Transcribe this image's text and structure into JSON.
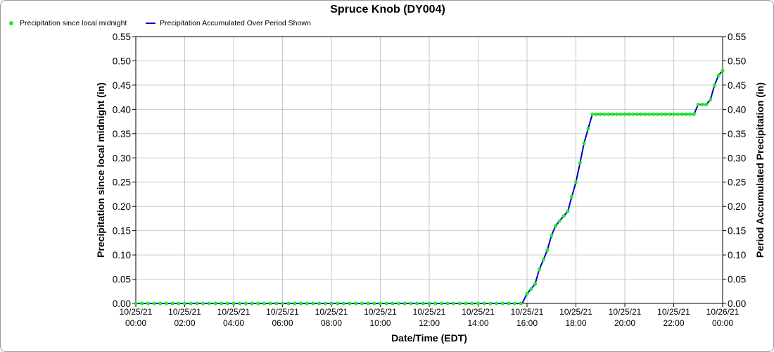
{
  "chart_data": {
    "type": "line",
    "title": "Spruce Knob (DY004)",
    "xlabel": "Date/Time (EDT)",
    "ylabel": "Precipitation since local midnight (in)",
    "ylabel_right": "Period Accumulated Precipitation (in)",
    "ylim": [
      0,
      0.55
    ],
    "xlim_hours": [
      0,
      24
    ],
    "yticks": [
      "0.00",
      "0.05",
      "0.10",
      "0.15",
      "0.20",
      "0.25",
      "0.30",
      "0.35",
      "0.40",
      "0.45",
      "0.50",
      "0.55"
    ],
    "xticks": [
      {
        "date": "10/25/21",
        "time": "00:00",
        "h": 0
      },
      {
        "date": "10/25/21",
        "time": "02:00",
        "h": 2
      },
      {
        "date": "10/25/21",
        "time": "04:00",
        "h": 4
      },
      {
        "date": "10/25/21",
        "time": "06:00",
        "h": 6
      },
      {
        "date": "10/25/21",
        "time": "08:00",
        "h": 8
      },
      {
        "date": "10/25/21",
        "time": "10:00",
        "h": 10
      },
      {
        "date": "10/25/21",
        "time": "12:00",
        "h": 12
      },
      {
        "date": "10/25/21",
        "time": "14:00",
        "h": 14
      },
      {
        "date": "10/25/21",
        "time": "16:00",
        "h": 16
      },
      {
        "date": "10/25/21",
        "time": "18:00",
        "h": 18
      },
      {
        "date": "10/25/21",
        "time": "20:00",
        "h": 20
      },
      {
        "date": "10/25/21",
        "time": "22:00",
        "h": 22
      },
      {
        "date": "10/26/21",
        "time": "00:00",
        "h": 24
      }
    ],
    "grid": true,
    "legend_position": "top-left",
    "series": [
      {
        "name": "Precipitation since local midnight",
        "style": "markers",
        "color": "#22ee22",
        "points": [
          [
            0.0,
            0
          ],
          [
            0.25,
            0
          ],
          [
            0.5,
            0
          ],
          [
            0.75,
            0
          ],
          [
            1.0,
            0
          ],
          [
            1.25,
            0
          ],
          [
            1.5,
            0
          ],
          [
            1.75,
            0
          ],
          [
            2.0,
            0
          ],
          [
            2.25,
            0
          ],
          [
            2.5,
            0
          ],
          [
            2.75,
            0
          ],
          [
            3.0,
            0
          ],
          [
            3.25,
            0
          ],
          [
            3.5,
            0
          ],
          [
            3.75,
            0
          ],
          [
            4.0,
            0
          ],
          [
            4.25,
            0
          ],
          [
            4.5,
            0
          ],
          [
            4.75,
            0
          ],
          [
            5.0,
            0
          ],
          [
            5.25,
            0
          ],
          [
            5.5,
            0
          ],
          [
            5.75,
            0
          ],
          [
            6.0,
            0
          ],
          [
            6.25,
            0
          ],
          [
            6.5,
            0
          ],
          [
            6.75,
            0
          ],
          [
            7.0,
            0
          ],
          [
            7.25,
            0
          ],
          [
            7.5,
            0
          ],
          [
            7.75,
            0
          ],
          [
            8.0,
            0
          ],
          [
            8.25,
            0
          ],
          [
            8.5,
            0
          ],
          [
            8.75,
            0
          ],
          [
            9.0,
            0
          ],
          [
            9.25,
            0
          ],
          [
            9.5,
            0
          ],
          [
            9.75,
            0
          ],
          [
            10.0,
            0
          ],
          [
            10.25,
            0
          ],
          [
            10.5,
            0
          ],
          [
            10.75,
            0
          ],
          [
            11.0,
            0
          ],
          [
            11.25,
            0
          ],
          [
            11.5,
            0
          ],
          [
            11.75,
            0
          ],
          [
            12.0,
            0
          ],
          [
            12.25,
            0
          ],
          [
            12.5,
            0
          ],
          [
            12.75,
            0
          ],
          [
            13.0,
            0
          ],
          [
            13.25,
            0
          ],
          [
            13.5,
            0
          ],
          [
            13.75,
            0
          ],
          [
            14.0,
            0
          ],
          [
            14.25,
            0
          ],
          [
            14.5,
            0
          ],
          [
            14.75,
            0
          ],
          [
            15.0,
            0
          ],
          [
            15.25,
            0
          ],
          [
            15.5,
            0
          ],
          [
            15.75,
            0
          ],
          [
            16.0,
            0.02
          ],
          [
            16.17,
            0.03
          ],
          [
            16.33,
            0.04
          ],
          [
            16.5,
            0.07
          ],
          [
            16.67,
            0.09
          ],
          [
            16.83,
            0.11
          ],
          [
            17.0,
            0.14
          ],
          [
            17.17,
            0.16
          ],
          [
            17.33,
            0.17
          ],
          [
            17.5,
            0.18
          ],
          [
            17.67,
            0.19
          ],
          [
            17.83,
            0.22
          ],
          [
            18.0,
            0.25
          ],
          [
            18.17,
            0.29
          ],
          [
            18.33,
            0.33
          ],
          [
            18.5,
            0.36
          ],
          [
            18.67,
            0.39
          ],
          [
            18.83,
            0.39
          ],
          [
            19.0,
            0.39
          ],
          [
            19.17,
            0.39
          ],
          [
            19.33,
            0.39
          ],
          [
            19.5,
            0.39
          ],
          [
            19.67,
            0.39
          ],
          [
            19.83,
            0.39
          ],
          [
            20.0,
            0.39
          ],
          [
            20.17,
            0.39
          ],
          [
            20.33,
            0.39
          ],
          [
            20.5,
            0.39
          ],
          [
            20.67,
            0.39
          ],
          [
            20.83,
            0.39
          ],
          [
            21.0,
            0.39
          ],
          [
            21.17,
            0.39
          ],
          [
            21.33,
            0.39
          ],
          [
            21.5,
            0.39
          ],
          [
            21.67,
            0.39
          ],
          [
            21.83,
            0.39
          ],
          [
            22.0,
            0.39
          ],
          [
            22.17,
            0.39
          ],
          [
            22.33,
            0.39
          ],
          [
            22.5,
            0.39
          ],
          [
            22.67,
            0.39
          ],
          [
            22.83,
            0.39
          ],
          [
            23.0,
            0.41
          ],
          [
            23.17,
            0.41
          ],
          [
            23.33,
            0.41
          ],
          [
            23.5,
            0.42
          ],
          [
            23.67,
            0.45
          ],
          [
            23.83,
            0.47
          ],
          [
            24.0,
            0.48
          ]
        ]
      },
      {
        "name": "Precipitation Accumulated Over Period Shown",
        "style": "line",
        "color": "#0000cc",
        "points": [
          [
            0,
            0
          ],
          [
            15.8,
            0
          ],
          [
            16.0,
            0.02
          ],
          [
            16.17,
            0.03
          ],
          [
            16.33,
            0.04
          ],
          [
            16.5,
            0.07
          ],
          [
            16.67,
            0.09
          ],
          [
            16.83,
            0.11
          ],
          [
            17.0,
            0.14
          ],
          [
            17.17,
            0.16
          ],
          [
            17.33,
            0.17
          ],
          [
            17.5,
            0.18
          ],
          [
            17.67,
            0.19
          ],
          [
            17.83,
            0.22
          ],
          [
            18.0,
            0.25
          ],
          [
            18.17,
            0.29
          ],
          [
            18.33,
            0.33
          ],
          [
            18.5,
            0.36
          ],
          [
            18.67,
            0.39
          ],
          [
            22.83,
            0.39
          ],
          [
            23.0,
            0.41
          ],
          [
            23.33,
            0.41
          ],
          [
            23.5,
            0.42
          ],
          [
            23.67,
            0.45
          ],
          [
            23.83,
            0.47
          ],
          [
            24.0,
            0.48
          ]
        ]
      }
    ]
  }
}
